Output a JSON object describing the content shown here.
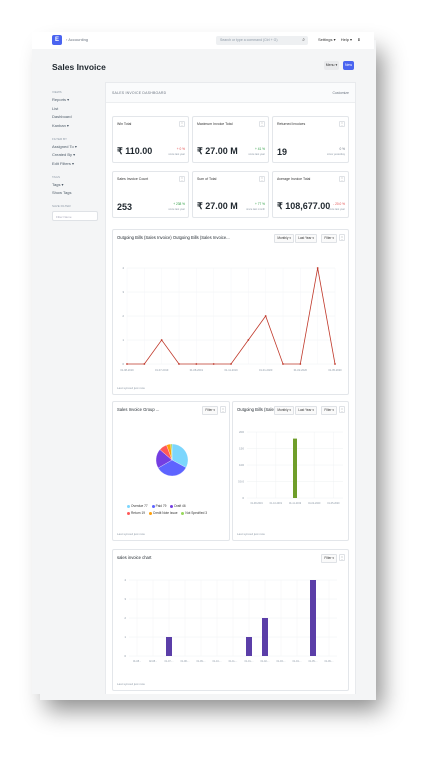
{
  "navbar": {
    "logo": "E",
    "breadcrumb": "› Accounting",
    "search_placeholder": "Search or type a command (Ctrl + G)",
    "search_icon": "⌕",
    "links": [
      "Settings ▾",
      "Help ▾",
      "⬇"
    ]
  },
  "header": {
    "title": "Sales Invoice",
    "menu_label": "Menu ▾",
    "new_label": "New"
  },
  "sidebar": {
    "sections": [
      {
        "label": "Views",
        "items": [
          "Reports ▾",
          "List",
          "Dashboard",
          "Kanban ▾"
        ]
      },
      {
        "label": "Filter By",
        "items": [
          "Assigned To ▾",
          "Created By ▾",
          "Edit Filters ▾"
        ]
      },
      {
        "label": "Tags",
        "items": [
          "Tags ▾",
          "Show Tags"
        ]
      },
      {
        "label": "Save Filter",
        "items": []
      }
    ],
    "filter_placeholder": "Filter Name"
  },
  "dashboard": {
    "label": "SALES INVOICE DASHBOARD",
    "customize": "Customize"
  },
  "cards": [
    {
      "title": "Win Total",
      "value": "₹ 110.00",
      "delta": "+ 0 %",
      "delta_class": "down",
      "since": "since last year"
    },
    {
      "title": "Maximum Invoice Total",
      "value": "₹ 27.00 M",
      "delta": "+ 41 %",
      "delta_class": "up",
      "since": "since last year"
    },
    {
      "title": "Returned Invoices",
      "value": "19",
      "delta": "0 %",
      "delta_class": "neutral",
      "since": "since yesterday"
    },
    {
      "title": "Sales Invoice Count",
      "value": "253",
      "delta": "+ 238 %",
      "delta_class": "up",
      "since": "since last year"
    },
    {
      "title": "Sum of Total",
      "value": "₹ 27.00 M",
      "delta": "+ 77 %",
      "delta_class": "up",
      "since": "since last month"
    },
    {
      "title": "Average Invoice Total",
      "value": "₹ 108,677.00",
      "delta": "- 20.0 %",
      "delta_class": "down",
      "since": "since last year"
    }
  ],
  "dot_label": "⋮",
  "line_card": {
    "title": "Outgoing Bills (Sales Invoice) Outgoing Bills (Sales Invoice...",
    "ctrl_monthly": "Monthly ▾",
    "ctrl_last_year": "Last Year ▾",
    "ctrl_filter": "Filter ▾",
    "sync": "Last synced just now"
  },
  "pie_card": {
    "title": "Sales Invoice Group ...",
    "ctrl_filter": "Filter ▾",
    "sync": "Last synced just now"
  },
  "bar_card": {
    "title": "Outgoing Bills (Sale...",
    "ctrl_monthly": "Monthly ▾",
    "ctrl_last_year": "Last Year ▾",
    "ctrl_filter": "Filter ▾",
    "sync": "Last synced just now"
  },
  "bar2_card": {
    "title": "sales invoice chart",
    "ctrl_filter": "Filter ▾",
    "sync": "Last synced just now"
  },
  "chart_data": [
    {
      "type": "line",
      "color": "#c0392b",
      "x": [
        "01-08-2019",
        "",
        "01-07-2019",
        "",
        "01-08-2019",
        "",
        "01-11-2019",
        "",
        "01-01-2020",
        "",
        "01-02-2020",
        "",
        "01-05-2020"
      ],
      "values": [
        0,
        0,
        1,
        0,
        0,
        0,
        0,
        1,
        2,
        0,
        0,
        4,
        0
      ],
      "ylim": [
        0,
        4
      ],
      "yticks": [
        "0",
        "1",
        "2",
        "3",
        "4"
      ]
    },
    {
      "type": "pie",
      "slices": [
        {
          "name": "Overdue 77",
          "value": 77,
          "color": "#7cd6fd"
        },
        {
          "name": "Paid 79",
          "value": 79,
          "color": "#5e64ff"
        },
        {
          "name": "Draft 46",
          "value": 46,
          "color": "#743ee2"
        },
        {
          "name": "Return 19",
          "value": 19,
          "color": "#ff5858"
        },
        {
          "name": "Credit Note Issue",
          "value": 10,
          "color": "#ffa00a"
        },
        {
          "name": "Not Specified 3",
          "value": 3,
          "color": "#98d85b"
        }
      ]
    },
    {
      "type": "bar",
      "color": "#6f9e2a",
      "x": [
        "01-08-2019",
        "01-10-2019",
        "01-11-2019",
        "01-02-2020",
        "01-05-2020"
      ],
      "values": [
        0,
        0,
        180,
        0,
        0
      ],
      "ylim": [
        0,
        200
      ],
      "yticks": [
        "0",
        "50.0",
        "100",
        "150",
        "200"
      ]
    },
    {
      "type": "bar",
      "color": "#5b3ea8",
      "x": [
        "01-08...",
        "02-08...",
        "01-07-...",
        "01-08-...",
        "01-09-...",
        "01-10-...",
        "01-11-...",
        "01-01-...",
        "01-02-...",
        "01-03-...",
        "01-04-...",
        "01-05-...",
        "01-06-..."
      ],
      "values": [
        0,
        0,
        1,
        0,
        0,
        0,
        0,
        1,
        2,
        0,
        0,
        4,
        0
      ],
      "ylim": [
        0,
        4
      ],
      "yticks": [
        "0",
        "1",
        "2",
        "3",
        "4"
      ]
    }
  ]
}
